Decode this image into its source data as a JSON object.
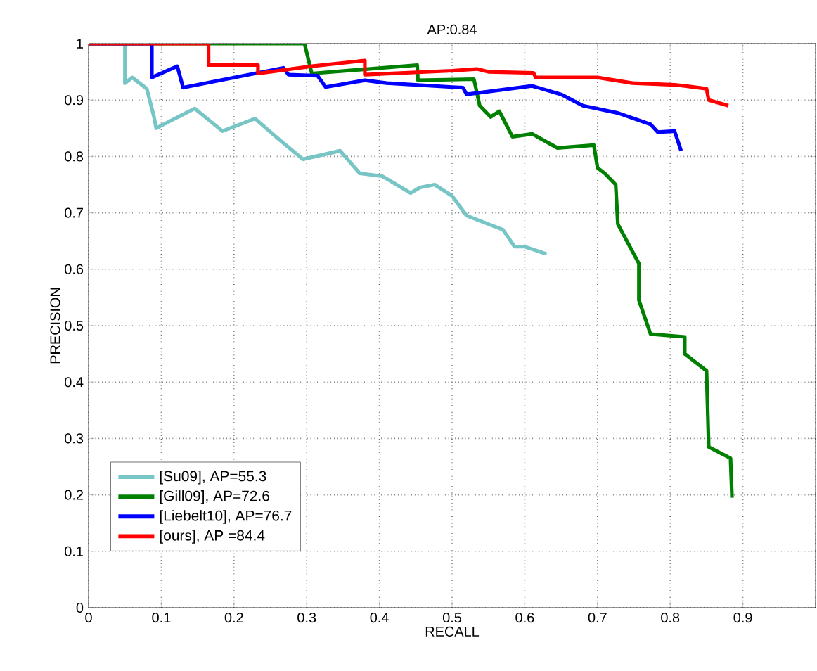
{
  "chart_data": {
    "type": "line",
    "title": "AP:0.84",
    "xlabel": "RECALL",
    "ylabel": "PRECISION",
    "xlim": [
      0,
      1
    ],
    "ylim": [
      0,
      1
    ],
    "xticks": [
      0,
      0.1,
      0.2,
      0.3,
      0.4,
      0.5,
      0.6,
      0.7,
      0.8,
      0.9,
      {
        "value": 1,
        "label": null
      }
    ],
    "yticks": [
      0,
      0.1,
      0.2,
      0.3,
      0.4,
      0.5,
      0.6,
      0.7,
      0.8,
      0.9,
      1
    ],
    "grid": true,
    "legend": "bottom left",
    "marker": "none",
    "line_style": "solid",
    "series": [
      {
        "name": "[Su09], AP=55.3",
        "color": "#77c5c5",
        "x": [
          0,
          0.05,
          0.05,
          0.06,
          0.08,
          0.09,
          0.093,
          0.146,
          0.184,
          0.229,
          0.262,
          0.295,
          0.346,
          0.373,
          0.404,
          0.443,
          0.456,
          0.476,
          0.5,
          0.52,
          0.57,
          0.586,
          0.6,
          0.63
        ],
        "values": [
          1,
          1,
          0.93,
          0.94,
          0.92,
          0.87,
          0.85,
          0.885,
          0.845,
          0.867,
          0.83,
          0.795,
          0.81,
          0.77,
          0.765,
          0.735,
          0.745,
          0.75,
          0.73,
          0.695,
          0.67,
          0.64,
          0.64,
          0.627
        ]
      },
      {
        "name": "[Gill09], AP=72.6",
        "color": "#008000",
        "x": [
          0,
          0.297,
          0.307,
          0.452,
          0.453,
          0.53,
          0.538,
          0.553,
          0.565,
          0.583,
          0.61,
          0.645,
          0.695,
          0.7,
          0.71,
          0.725,
          0.728,
          0.757,
          0.757,
          0.773,
          0.82,
          0.82,
          0.85,
          0.853,
          0.883,
          0.885
        ],
        "values": [
          1,
          1,
          0.947,
          0.962,
          0.935,
          0.937,
          0.89,
          0.87,
          0.88,
          0.835,
          0.84,
          0.815,
          0.82,
          0.78,
          0.77,
          0.75,
          0.68,
          0.61,
          0.545,
          0.485,
          0.48,
          0.45,
          0.42,
          0.285,
          0.265,
          0.195
        ]
      },
      {
        "name": "[Liebelt10], AP=76.7",
        "color": "#0000ff",
        "x": [
          0,
          0.087,
          0.087,
          0.122,
          0.13,
          0.268,
          0.275,
          0.315,
          0.326,
          0.38,
          0.41,
          0.5,
          0.515,
          0.52,
          0.61,
          0.65,
          0.68,
          0.728,
          0.773,
          0.783,
          0.806,
          0.815
        ],
        "values": [
          1,
          1,
          0.94,
          0.96,
          0.922,
          0.957,
          0.945,
          0.943,
          0.923,
          0.935,
          0.93,
          0.923,
          0.922,
          0.91,
          0.925,
          0.91,
          0.89,
          0.877,
          0.857,
          0.843,
          0.845,
          0.81
        ]
      },
      {
        "name": "[ours], AP =84.4",
        "color": "#ff0000",
        "x": [
          0,
          0.165,
          0.165,
          0.233,
          0.233,
          0.307,
          0.38,
          0.38,
          0.5,
          0.534,
          0.55,
          0.612,
          0.615,
          0.7,
          0.748,
          0.806,
          0.82,
          0.85,
          0.853,
          0.88
        ],
        "values": [
          1,
          1,
          0.962,
          0.962,
          0.947,
          0.96,
          0.97,
          0.945,
          0.952,
          0.955,
          0.95,
          0.948,
          0.94,
          0.94,
          0.93,
          0.927,
          0.925,
          0.92,
          0.9,
          0.89
        ]
      }
    ]
  }
}
